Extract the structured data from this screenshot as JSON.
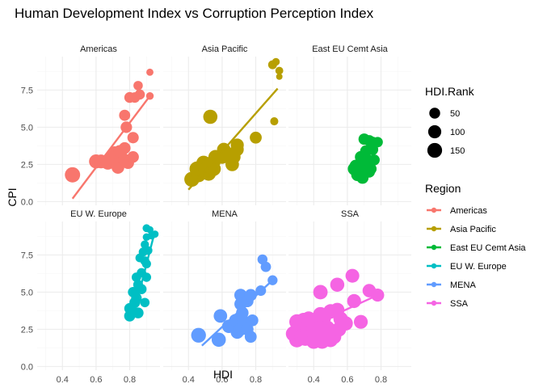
{
  "chart_data": {
    "type": "scatter",
    "title": "Human Development Index vs Corruption Perception Index",
    "xlabel": "HDI",
    "ylabel": "CPI",
    "xlim": [
      0.25,
      0.98
    ],
    "ylim": [
      -0.25,
      9.75
    ],
    "x_ticks": [
      0.4,
      0.6,
      0.8
    ],
    "y_ticks": [
      0.0,
      2.5,
      5.0,
      7.5
    ],
    "x_tick_labels": [
      "0.4",
      "0.6",
      "0.8"
    ],
    "y_tick_labels": [
      "0.0",
      "2.5",
      "5.0",
      "7.5"
    ],
    "facet_layout": {
      "rows": 2,
      "cols": 3
    },
    "legend_position": "right",
    "size_legend": {
      "title": "HDI.Rank",
      "entries": [
        {
          "label": "50",
          "value": 50
        },
        {
          "label": "100",
          "value": 100
        },
        {
          "label": "150",
          "value": 150
        }
      ]
    },
    "color_legend": {
      "title": "Region",
      "entries": [
        {
          "label": "Americas",
          "color": "#F8766D"
        },
        {
          "label": "Asia Pacific",
          "color": "#B79F00"
        },
        {
          "label": "East EU Cemt Asia",
          "color": "#00BA38"
        },
        {
          "label": "EU W. Europe",
          "color": "#00BFC4"
        },
        {
          "label": "MENA",
          "color": "#619CFF"
        },
        {
          "label": "SSA",
          "color": "#F564E3"
        }
      ]
    },
    "facets": [
      {
        "name": "Americas",
        "color": "#F8766D",
        "trend": [
          [
            0.46,
            0.2
          ],
          [
            0.92,
            7.1
          ]
        ],
        "points": [
          [
            0.92,
            8.7,
            5
          ],
          [
            0.92,
            7.1,
            8
          ],
          [
            0.85,
            7.8,
            26
          ],
          [
            0.86,
            7.2,
            38
          ],
          [
            0.83,
            7.0,
            44
          ],
          [
            0.8,
            7.0,
            48
          ],
          [
            0.77,
            5.8,
            55
          ],
          [
            0.78,
            5.0,
            62
          ],
          [
            0.82,
            4.3,
            60
          ],
          [
            0.74,
            3.4,
            72
          ],
          [
            0.77,
            3.6,
            70
          ],
          [
            0.71,
            3.3,
            85
          ],
          [
            0.72,
            3.0,
            90
          ],
          [
            0.75,
            3.0,
            88
          ],
          [
            0.77,
            2.8,
            80
          ],
          [
            0.69,
            2.9,
            100
          ],
          [
            0.71,
            2.7,
            95
          ],
          [
            0.82,
            3.0,
            65
          ],
          [
            0.63,
            2.7,
            120
          ],
          [
            0.67,
            2.6,
            110
          ],
          [
            0.6,
            2.7,
            128
          ],
          [
            0.73,
            2.3,
            92
          ],
          [
            0.79,
            2.6,
            75
          ],
          [
            0.46,
            1.8,
            168
          ]
        ]
      },
      {
        "name": "Asia Pacific",
        "color": "#B79F00",
        "trend": [
          [
            0.4,
            0.8
          ],
          [
            0.93,
            7.6
          ]
        ],
        "points": [
          [
            0.92,
            9.4,
            8
          ],
          [
            0.94,
            8.8,
            10
          ],
          [
            0.9,
            9.2,
            20
          ],
          [
            0.94,
            8.4,
            2
          ],
          [
            0.91,
            5.4,
            12
          ],
          [
            0.53,
            5.7,
            132
          ],
          [
            0.8,
            4.3,
            72
          ],
          [
            0.69,
            3.8,
            100
          ],
          [
            0.69,
            3.5,
            98
          ],
          [
            0.61,
            3.5,
            112
          ],
          [
            0.64,
            3.2,
            110
          ],
          [
            0.56,
            3.0,
            125
          ],
          [
            0.67,
            3.0,
            108
          ],
          [
            0.6,
            3.0,
            118
          ],
          [
            0.55,
            2.7,
            130
          ],
          [
            0.52,
            2.4,
            138
          ],
          [
            0.49,
            2.6,
            140
          ],
          [
            0.45,
            2.2,
            150
          ],
          [
            0.5,
            2.1,
            145
          ],
          [
            0.55,
            2.2,
            135
          ],
          [
            0.66,
            2.5,
            112
          ],
          [
            0.42,
            1.5,
            160
          ],
          [
            0.46,
            1.8,
            155
          ],
          [
            0.52,
            1.9,
            150
          ]
        ]
      },
      {
        "name": "East EU Cemt Asia",
        "color": "#00BA38",
        "trend": null,
        "points": [
          [
            0.7,
            4.2,
            60
          ],
          [
            0.73,
            4.1,
            55
          ],
          [
            0.75,
            4.0,
            50
          ],
          [
            0.78,
            4.0,
            42
          ],
          [
            0.71,
            3.4,
            62
          ],
          [
            0.75,
            3.5,
            58
          ],
          [
            0.68,
            3.0,
            70
          ],
          [
            0.72,
            2.8,
            68
          ],
          [
            0.76,
            2.8,
            52
          ],
          [
            0.65,
            2.4,
            82
          ],
          [
            0.7,
            2.4,
            72
          ],
          [
            0.74,
            2.2,
            60
          ],
          [
            0.67,
            2.0,
            80
          ],
          [
            0.73,
            2.0,
            62
          ],
          [
            0.69,
            1.6,
            75
          ],
          [
            0.66,
            1.8,
            85
          ],
          [
            0.64,
            2.2,
            88
          ]
        ]
      },
      {
        "name": "EU W. Europe",
        "color": "#00BFC4",
        "trend": [
          [
            0.83,
            3.8
          ],
          [
            0.95,
            9.1
          ]
        ],
        "points": [
          [
            0.9,
            9.3,
            10
          ],
          [
            0.92,
            9.2,
            5
          ],
          [
            0.95,
            8.9,
            6
          ],
          [
            0.93,
            8.8,
            9
          ],
          [
            0.9,
            8.7,
            8
          ],
          [
            0.89,
            8.2,
            14
          ],
          [
            0.91,
            7.8,
            15
          ],
          [
            0.88,
            7.7,
            20
          ],
          [
            0.86,
            7.3,
            18
          ],
          [
            0.89,
            7.1,
            22
          ],
          [
            0.9,
            6.9,
            21
          ],
          [
            0.87,
            6.3,
            26
          ],
          [
            0.84,
            6.0,
            28
          ],
          [
            0.9,
            6.0,
            24
          ],
          [
            0.85,
            5.5,
            32
          ],
          [
            0.87,
            5.2,
            38
          ],
          [
            0.82,
            5.0,
            40
          ],
          [
            0.84,
            4.6,
            45
          ],
          [
            0.83,
            4.3,
            48
          ],
          [
            0.89,
            4.3,
            26
          ],
          [
            0.81,
            3.7,
            48
          ],
          [
            0.85,
            3.6,
            50
          ],
          [
            0.8,
            3.4,
            55
          ],
          [
            0.8,
            3.9,
            50
          ]
        ]
      },
      {
        "name": "MENA",
        "color": "#619CFF",
        "trend": [
          [
            0.48,
            1.4
          ],
          [
            0.9,
            5.8
          ]
        ],
        "points": [
          [
            0.84,
            7.2,
            36
          ],
          [
            0.86,
            6.7,
            40
          ],
          [
            0.9,
            5.8,
            34
          ],
          [
            0.83,
            5.1,
            44
          ],
          [
            0.71,
            4.8,
            88
          ],
          [
            0.77,
            4.8,
            78
          ],
          [
            0.71,
            4.2,
            85
          ],
          [
            0.75,
            4.4,
            80
          ],
          [
            0.59,
            3.4,
            112
          ],
          [
            0.72,
            3.6,
            86
          ],
          [
            0.68,
            3.1,
            98
          ],
          [
            0.73,
            3.0,
            90
          ],
          [
            0.78,
            3.1,
            70
          ],
          [
            0.64,
            2.7,
            110
          ],
          [
            0.71,
            2.5,
            95
          ],
          [
            0.69,
            2.3,
            100
          ],
          [
            0.75,
            2.5,
            80
          ],
          [
            0.46,
            2.1,
            152
          ],
          [
            0.77,
            2.0,
            72
          ],
          [
            0.58,
            1.8,
            132
          ]
        ]
      },
      {
        "name": "SSA",
        "color": "#F564E3",
        "trend": [
          [
            0.28,
            2.2
          ],
          [
            0.78,
            4.8
          ]
        ],
        "points": [
          [
            0.78,
            4.8,
            100
          ],
          [
            0.73,
            5.1,
            108
          ],
          [
            0.63,
            6.1,
            120
          ],
          [
            0.54,
            5.5,
            130
          ],
          [
            0.44,
            5.0,
            140
          ],
          [
            0.64,
            4.4,
            125
          ],
          [
            0.5,
            3.7,
            145
          ],
          [
            0.54,
            3.8,
            138
          ],
          [
            0.44,
            3.5,
            150
          ],
          [
            0.46,
            3.3,
            152
          ],
          [
            0.37,
            3.2,
            158
          ],
          [
            0.34,
            3.1,
            162
          ],
          [
            0.3,
            3.0,
            165
          ],
          [
            0.56,
            3.2,
            140
          ],
          [
            0.68,
            3.0,
            122
          ],
          [
            0.39,
            2.8,
            160
          ],
          [
            0.42,
            2.7,
            158
          ],
          [
            0.48,
            2.6,
            152
          ],
          [
            0.31,
            2.6,
            168
          ],
          [
            0.35,
            2.4,
            165
          ],
          [
            0.4,
            2.3,
            162
          ],
          [
            0.44,
            2.3,
            156
          ],
          [
            0.5,
            2.4,
            150
          ],
          [
            0.55,
            2.5,
            142
          ],
          [
            0.28,
            2.2,
            170
          ],
          [
            0.33,
            2.0,
            168
          ],
          [
            0.37,
            2.1,
            166
          ],
          [
            0.42,
            1.9,
            162
          ],
          [
            0.47,
            2.0,
            155
          ],
          [
            0.52,
            2.0,
            150
          ],
          [
            0.3,
            1.8,
            170
          ],
          [
            0.35,
            1.9,
            168
          ],
          [
            0.4,
            1.7,
            165
          ],
          [
            0.45,
            1.7,
            160
          ],
          [
            0.5,
            1.8,
            152
          ],
          [
            0.59,
            2.9,
            138
          ]
        ]
      }
    ]
  }
}
